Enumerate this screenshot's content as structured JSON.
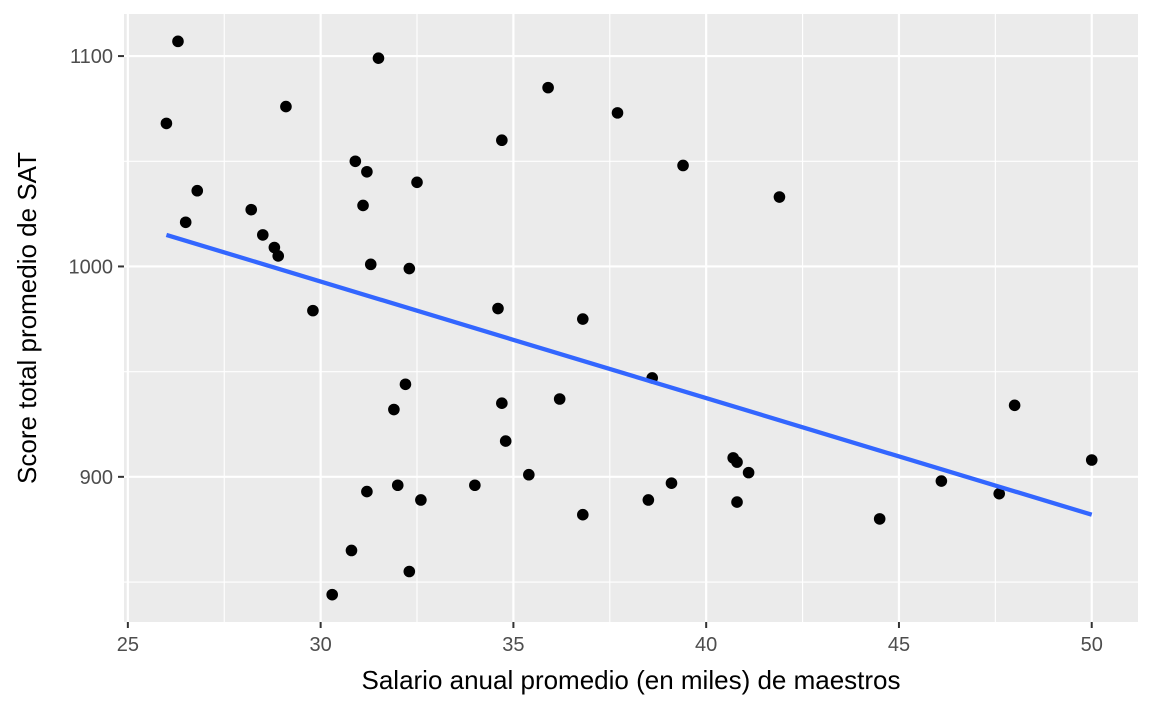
{
  "chart_data": {
    "type": "scatter",
    "xlabel": "Salario anual promedio (en miles) de maestros",
    "ylabel": "Score total promedio de SAT",
    "xlim": [
      24.9,
      51.2
    ],
    "ylim": [
      831,
      1120
    ],
    "x_ticks": [
      25,
      30,
      35,
      40,
      45,
      50
    ],
    "x_tick_labels": [
      "25",
      "30",
      "35",
      "40",
      "45",
      "50"
    ],
    "y_ticks": [
      900,
      1000,
      1100
    ],
    "y_tick_labels": [
      "900",
      "1000",
      "1100"
    ],
    "grid": true,
    "legend": "none",
    "colors": {
      "panel": "#ebebeb",
      "grid": "#ffffff",
      "points": "#000000",
      "trend": "#3366ff"
    },
    "points": [
      {
        "x": 26.0,
        "y": 1068
      },
      {
        "x": 26.3,
        "y": 1107
      },
      {
        "x": 26.5,
        "y": 1021
      },
      {
        "x": 26.8,
        "y": 1036
      },
      {
        "x": 28.2,
        "y": 1027
      },
      {
        "x": 28.5,
        "y": 1015
      },
      {
        "x": 28.8,
        "y": 1009
      },
      {
        "x": 28.9,
        "y": 1005
      },
      {
        "x": 29.1,
        "y": 1076
      },
      {
        "x": 29.8,
        "y": 979
      },
      {
        "x": 30.3,
        "y": 844
      },
      {
        "x": 30.8,
        "y": 865
      },
      {
        "x": 30.9,
        "y": 1050
      },
      {
        "x": 31.1,
        "y": 1029
      },
      {
        "x": 31.2,
        "y": 1045
      },
      {
        "x": 31.2,
        "y": 893
      },
      {
        "x": 31.3,
        "y": 1001
      },
      {
        "x": 31.5,
        "y": 1099
      },
      {
        "x": 31.9,
        "y": 932
      },
      {
        "x": 32.0,
        "y": 896
      },
      {
        "x": 32.2,
        "y": 944
      },
      {
        "x": 32.3,
        "y": 999
      },
      {
        "x": 32.3,
        "y": 855
      },
      {
        "x": 32.5,
        "y": 1040
      },
      {
        "x": 32.6,
        "y": 889
      },
      {
        "x": 34.0,
        "y": 896
      },
      {
        "x": 34.6,
        "y": 980
      },
      {
        "x": 34.7,
        "y": 1060
      },
      {
        "x": 34.7,
        "y": 935
      },
      {
        "x": 34.8,
        "y": 917
      },
      {
        "x": 35.4,
        "y": 901
      },
      {
        "x": 35.9,
        "y": 1085
      },
      {
        "x": 36.2,
        "y": 937
      },
      {
        "x": 36.8,
        "y": 975
      },
      {
        "x": 36.8,
        "y": 882
      },
      {
        "x": 37.7,
        "y": 1073
      },
      {
        "x": 38.5,
        "y": 889
      },
      {
        "x": 38.6,
        "y": 947
      },
      {
        "x": 39.1,
        "y": 897
      },
      {
        "x": 39.4,
        "y": 1048
      },
      {
        "x": 40.7,
        "y": 909
      },
      {
        "x": 40.8,
        "y": 907
      },
      {
        "x": 40.8,
        "y": 888
      },
      {
        "x": 41.1,
        "y": 902
      },
      {
        "x": 41.9,
        "y": 1033
      },
      {
        "x": 44.5,
        "y": 880
      },
      {
        "x": 46.1,
        "y": 898
      },
      {
        "x": 47.6,
        "y": 892
      },
      {
        "x": 48.0,
        "y": 934
      },
      {
        "x": 50.0,
        "y": 908
      }
    ],
    "trend_line": {
      "x": [
        26.0,
        50.0
      ],
      "y": [
        1015,
        882
      ]
    }
  }
}
